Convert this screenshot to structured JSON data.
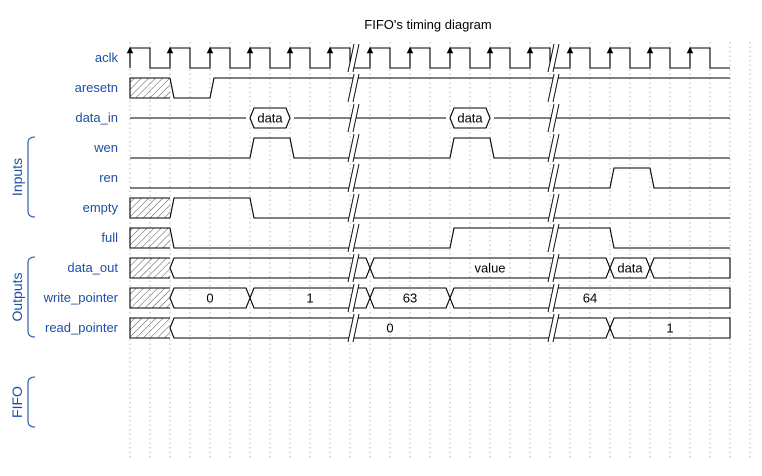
{
  "title": "FIFO's timing diagram",
  "groups": [
    {
      "label": "Inputs"
    },
    {
      "label": "Outputs"
    },
    {
      "label": "FIFO"
    }
  ],
  "signals": [
    {
      "name": "aclk",
      "type": "clock",
      "segments": []
    },
    {
      "name": "aresetn",
      "type": "bit",
      "segments": [
        {
          "from": 0,
          "to": 1,
          "state": "x"
        },
        {
          "from": 1,
          "to": 2,
          "state": "0"
        },
        {
          "from": 2,
          "to": 15,
          "state": "1"
        }
      ]
    },
    {
      "name": "data_in",
      "type": "bus",
      "segments": [
        {
          "from": 0,
          "to": 3,
          "state": "z"
        },
        {
          "from": 3,
          "to": 4,
          "state": "data",
          "text": "data",
          "fill": "#b7dbf0"
        },
        {
          "from": 4,
          "to": 8,
          "state": "z"
        },
        {
          "from": 8,
          "to": 9,
          "state": "data",
          "text": "data",
          "fill": "#b7dbf0"
        },
        {
          "from": 9,
          "to": 15,
          "state": "z"
        }
      ]
    },
    {
      "name": "wen",
      "type": "bit",
      "segments": [
        {
          "from": 0,
          "to": 3,
          "state": "0"
        },
        {
          "from": 3,
          "to": 4,
          "state": "1"
        },
        {
          "from": 4,
          "to": 8,
          "state": "0"
        },
        {
          "from": 8,
          "to": 9,
          "state": "1"
        },
        {
          "from": 9,
          "to": 15,
          "state": "0"
        }
      ]
    },
    {
      "name": "ren",
      "type": "bit",
      "segments": [
        {
          "from": 0,
          "to": 12,
          "state": "0"
        },
        {
          "from": 12,
          "to": 13,
          "state": "1"
        },
        {
          "from": 13,
          "to": 15,
          "state": "0"
        }
      ]
    },
    {
      "name": "empty",
      "type": "bit",
      "segments": [
        {
          "from": 0,
          "to": 1,
          "state": "x"
        },
        {
          "from": 1,
          "to": 3,
          "state": "1"
        },
        {
          "from": 3,
          "to": 15,
          "state": "0"
        }
      ]
    },
    {
      "name": "full",
      "type": "bit",
      "segments": [
        {
          "from": 0,
          "to": 1,
          "state": "x"
        },
        {
          "from": 1,
          "to": 8,
          "state": "0"
        },
        {
          "from": 8,
          "to": 12,
          "state": "1"
        },
        {
          "from": 12,
          "to": 15,
          "state": "0"
        }
      ]
    },
    {
      "name": "data_out",
      "type": "bus",
      "segments": [
        {
          "from": 0,
          "to": 1,
          "state": "x"
        },
        {
          "from": 1,
          "to": 6,
          "state": "data",
          "text": ""
        },
        {
          "from": 6,
          "to": 12,
          "state": "data",
          "text": "value"
        },
        {
          "from": 12,
          "to": 13,
          "state": "data",
          "text": "data",
          "fill": "#f9d3ad"
        },
        {
          "from": 13,
          "to": 15,
          "state": "data",
          "text": ""
        }
      ]
    },
    {
      "name": "write_pointer",
      "type": "bus",
      "segments": [
        {
          "from": 0,
          "to": 1,
          "state": "x"
        },
        {
          "from": 1,
          "to": 3,
          "state": "data",
          "text": "0"
        },
        {
          "from": 3,
          "to": 6,
          "state": "data",
          "text": "1"
        },
        {
          "from": 6,
          "to": 8,
          "state": "data",
          "text": "63"
        },
        {
          "from": 8,
          "to": 15,
          "state": "data",
          "text": "64"
        }
      ]
    },
    {
      "name": "read_pointer",
      "type": "bus",
      "segments": [
        {
          "from": 0,
          "to": 1,
          "state": "x"
        },
        {
          "from": 1,
          "to": 12,
          "state": "data",
          "text": "0"
        },
        {
          "from": 12,
          "to": 15,
          "state": "data",
          "text": "1"
        }
      ]
    }
  ],
  "gaps": [
    5.5,
    10.5
  ]
}
